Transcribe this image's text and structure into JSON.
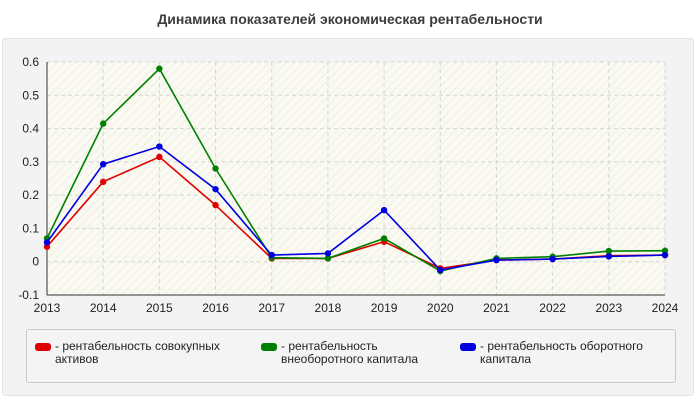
{
  "chart_data": {
    "type": "line",
    "title": "Динамика показателей экономическая рентабельности",
    "xlabel": "",
    "ylabel": "",
    "categories": [
      "2013",
      "2014",
      "2015",
      "2016",
      "2017",
      "2018",
      "2019",
      "2020",
      "2021",
      "2022",
      "2023",
      "2024"
    ],
    "ylim": [
      -0.1,
      0.6
    ],
    "yticks": [
      "0.6",
      "0.5",
      "0.4",
      "0.3",
      "0.2",
      "0.1",
      "0",
      "-0.1"
    ],
    "grid": true,
    "legend_position": "bottom",
    "series": [
      {
        "name": "- рентабельность совокупных активов",
        "color": "#e00000",
        "values": [
          0.045,
          0.24,
          0.315,
          0.17,
          0.01,
          0.01,
          0.06,
          -0.02,
          0.005,
          0.008,
          0.018,
          0.02
        ]
      },
      {
        "name": "- рентабельность внеоборотного капитала",
        "color": "#008000",
        "values": [
          0.07,
          0.415,
          0.58,
          0.28,
          0.012,
          0.01,
          0.07,
          -0.028,
          0.01,
          0.015,
          0.032,
          0.033
        ]
      },
      {
        "name": "- рентабельность оборотного капитала",
        "color": "#0000e0",
        "values": [
          0.058,
          0.293,
          0.346,
          0.218,
          0.02,
          0.025,
          0.155,
          -0.025,
          0.005,
          0.008,
          0.016,
          0.02
        ]
      }
    ]
  }
}
